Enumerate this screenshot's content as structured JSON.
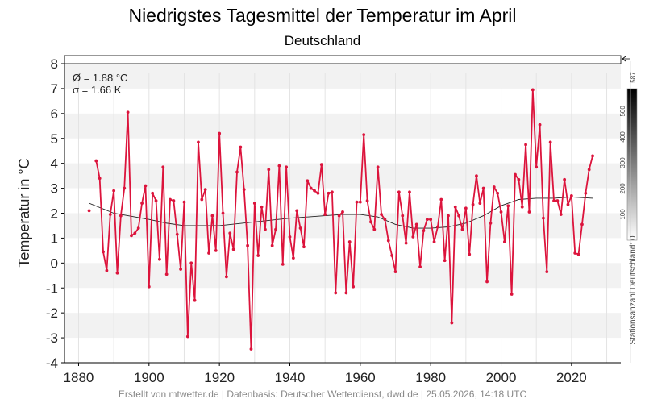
{
  "chart_data": {
    "type": "line",
    "title": "Niedrigstes Tagesmittel der Temperatur im April",
    "subtitle": "Deutschland",
    "ylabel": "Temperatur in °C",
    "xlim": [
      1876,
      2034
    ],
    "ylim": [
      -4,
      8
    ],
    "yticks": [
      "8",
      "7",
      "6",
      "5",
      "4",
      "3",
      "2",
      "1",
      "0",
      "-1",
      "-2",
      "-3",
      "-4"
    ],
    "xticks": [
      "1880",
      "1900",
      "1920",
      "1940",
      "1960",
      "1980",
      "2000",
      "2020"
    ],
    "stats": {
      "mean": "Ø = 1.88 °C",
      "sd": "σ = 1.66 K"
    },
    "colors": {
      "series": "#dc143c",
      "trend": "#222222",
      "band": "#f2f2f2"
    },
    "series": [
      {
        "x": [
          1883,
          1884,
          1885,
          1886,
          1887,
          1888,
          1889,
          1890,
          1891,
          1892,
          1893,
          1894,
          1895,
          1896,
          1897,
          1898,
          1899,
          1900,
          1901,
          1902,
          1903,
          1904,
          1905,
          1906,
          1907,
          1908,
          1909,
          1910,
          1911,
          1912,
          1913,
          1914,
          1915,
          1916,
          1917,
          1918,
          1919,
          1920,
          1921,
          1922,
          1923,
          1924,
          1925,
          1926,
          1927,
          1928,
          1929,
          1930,
          1931,
          1932,
          1933,
          1934,
          1935,
          1936,
          1937,
          1938,
          1939,
          1940,
          1941,
          1942,
          1943,
          1944,
          1945,
          1946,
          1947,
          1948,
          1949,
          1950,
          1951,
          1952,
          1953,
          1954,
          1955,
          1956,
          1957,
          1958,
          1959,
          1960,
          1961,
          1962,
          1963,
          1964,
          1965,
          1966,
          1967,
          1968,
          1969,
          1970,
          1971,
          1972,
          1973,
          1974,
          1975,
          1976,
          1977,
          1978,
          1979,
          1980,
          1981,
          1982,
          1983,
          1984,
          1985,
          1986,
          1987,
          1988,
          1989,
          1990,
          1991,
          1992,
          1993,
          1994,
          1995,
          1996,
          1997,
          1998,
          1999,
          2000,
          2001,
          2002,
          2003,
          2004,
          2005,
          2006,
          2007,
          2008,
          2009,
          2010,
          2011,
          2012,
          2013,
          2014,
          2015,
          2016,
          2017,
          2018,
          2019,
          2020,
          2021,
          2022,
          2023,
          2024,
          2025,
          2026
        ],
        "values": [
          2.1,
          null,
          4.1,
          3.4,
          0.45,
          -0.3,
          1.95,
          2.9,
          -0.4,
          1.9,
          3.0,
          6.05,
          1.1,
          1.2,
          1.4,
          2.4,
          3.1,
          -0.95,
          2.8,
          2.5,
          0.15,
          3.85,
          -0.45,
          2.55,
          2.5,
          1.15,
          -0.25,
          2.45,
          -2.95,
          0.0,
          -1.5,
          4.85,
          2.55,
          2.95,
          0.4,
          1.9,
          0.5,
          5.2,
          2.0,
          -0.55,
          1.2,
          0.55,
          3.65,
          4.65,
          2.95,
          0.7,
          -3.45,
          2.4,
          0.3,
          2.25,
          1.35,
          3.75,
          0.7,
          1.35,
          3.9,
          -0.05,
          3.85,
          1.05,
          0.2,
          2.1,
          1.4,
          0.65,
          3.3,
          3.0,
          2.9,
          2.8,
          3.95,
          1.95,
          2.8,
          2.85,
          -1.2,
          1.9,
          2.05,
          -1.2,
          0.85,
          -0.95,
          2.45,
          2.45,
          5.15,
          2.5,
          1.65,
          1.35,
          3.85,
          1.95,
          1.75,
          0.9,
          0.3,
          -0.35,
          2.85,
          1.9,
          0.8,
          2.85,
          1.05,
          1.55,
          -0.15,
          1.3,
          1.75,
          1.75,
          0.85,
          1.45,
          2.55,
          0.1,
          1.9,
          -2.4,
          2.25,
          1.9,
          1.35,
          2.2,
          0.35,
          2.35,
          3.5,
          2.4,
          3.0,
          -0.75,
          1.6,
          3.05,
          2.8,
          2.05,
          0.85,
          2.3,
          -1.25,
          3.55,
          3.35,
          2.25,
          4.75,
          2.05,
          6.95,
          3.85,
          5.55,
          1.8,
          -0.35,
          4.85,
          2.5,
          2.5,
          1.95,
          3.35,
          2.35,
          2.7,
          0.4,
          0.35,
          1.55,
          2.8,
          3.75,
          4.3
        ]
      }
    ],
    "trend": {
      "x": [
        1883,
        1890,
        1900,
        1905,
        1910,
        1920,
        1930,
        1940,
        1950,
        1955,
        1960,
        1965,
        1970,
        1975,
        1980,
        1985,
        1990,
        1995,
        2000,
        2005,
        2010,
        2015,
        2020,
        2026
      ],
      "values": [
        2.4,
        2.0,
        1.75,
        1.6,
        1.5,
        1.5,
        1.65,
        1.8,
        1.9,
        1.95,
        1.95,
        1.85,
        1.55,
        1.4,
        1.4,
        1.45,
        1.6,
        1.9,
        2.3,
        2.55,
        2.6,
        2.6,
        2.65,
        2.6
      ]
    },
    "station_count": {
      "label": "Stationsanzahl Deutschland: 0",
      "max_label": "587",
      "scale_ticks": [
        "500",
        "400",
        "300",
        "200",
        "100"
      ],
      "max": 587,
      "bar_levels": [
        0,
        0,
        0,
        0,
        0,
        0,
        0,
        0,
        0,
        0,
        0,
        0,
        0,
        0,
        0,
        0,
        0,
        0,
        0,
        0,
        0,
        0,
        0,
        0,
        0,
        0,
        0,
        0,
        0,
        0,
        0,
        0,
        0,
        0,
        0,
        0,
        0,
        0,
        0,
        0,
        0,
        0,
        0,
        0,
        0,
        0,
        0,
        0,
        0,
        0,
        0,
        0,
        0,
        0,
        0,
        0,
        0,
        0,
        0,
        0,
        0,
        0,
        0,
        0,
        0,
        0,
        0,
        0,
        0,
        0,
        0,
        0,
        0,
        0,
        0,
        0,
        0,
        0,
        0,
        0,
        0,
        0,
        0,
        0,
        0,
        0,
        0,
        0,
        0,
        0,
        0,
        0,
        0,
        0,
        0,
        0,
        0,
        0,
        0,
        0,
        0,
        0,
        0,
        0,
        0,
        0,
        0,
        0,
        0,
        0,
        0,
        0,
        0,
        0,
        0,
        0,
        0,
        0,
        0,
        0,
        0,
        0,
        0,
        0,
        0,
        0,
        0,
        0,
        0,
        0,
        0,
        0,
        0,
        0,
        0,
        0,
        0,
        0,
        0,
        0,
        0,
        0,
        0,
        0
      ]
    }
  },
  "footer": "Erstellt von mtwetter.de | Datenbasis: Deutscher Wetterdienst, dwd.de | 25.05.2026, 14:18 UTC"
}
